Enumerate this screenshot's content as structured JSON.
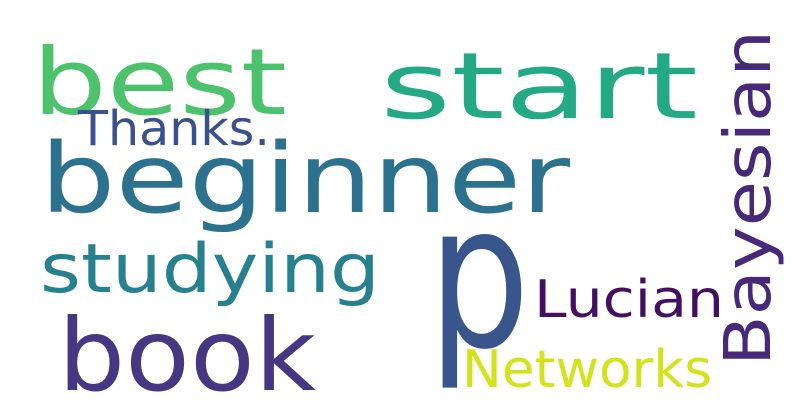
{
  "words": [
    {
      "id": "best",
      "text": "best",
      "color": "#4cc26c"
    },
    {
      "id": "start",
      "text": "start",
      "color": "#23a983"
    },
    {
      "id": "bayesian",
      "text": "Bayesian",
      "color": "#482878"
    },
    {
      "id": "thanks",
      "text": "Thanks.",
      "color": "#3b518b"
    },
    {
      "id": "beginner",
      "text": "beginner",
      "color": "#2c728e"
    },
    {
      "id": "studying",
      "text": "studying",
      "color": "#27808e"
    },
    {
      "id": "p",
      "text": "p",
      "color": "#39568c"
    },
    {
      "id": "lucian",
      "text": "Lucian",
      "color": "#440f5e"
    },
    {
      "id": "book",
      "text": "book",
      "color": "#453781"
    },
    {
      "id": "networks",
      "text": "Networks",
      "color": "#d2e21b"
    }
  ]
}
